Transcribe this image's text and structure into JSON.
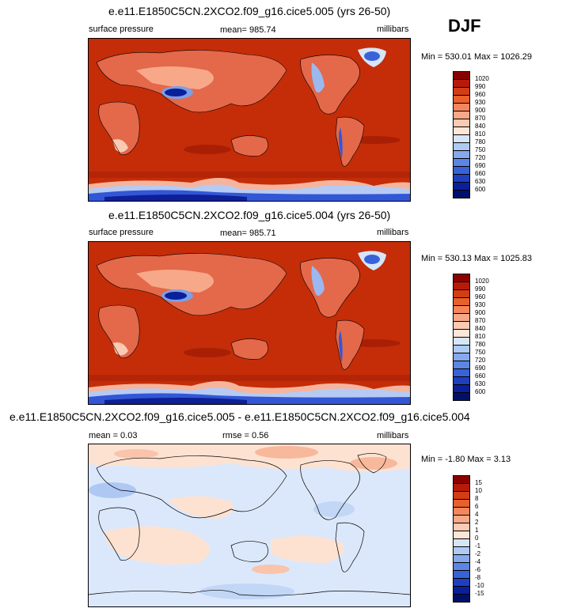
{
  "season": "DJF",
  "panels": [
    {
      "title": "e.e11.E1850C5CN.2XCO2.f09_g16.cice5.005 (yrs 26-50)",
      "left_label": "surface pressure",
      "mean_text": "mean= 985.74",
      "units": "millibars",
      "minmax": "Min = 530.01 Max = 1026.29"
    },
    {
      "title": "e.e11.E1850C5CN.2XCO2.f09_g16.cice5.004 (yrs 26-50)",
      "left_label": "surface pressure",
      "mean_text": "mean= 985.71",
      "units": "millibars",
      "minmax": "Min = 530.13 Max = 1025.83"
    },
    {
      "title": "e.e11.E1850C5CN.2XCO2.f09_g16.cice5.005 - e.e11.E1850C5CN.2XCO2.f09_g16.cice5.004",
      "mean_text": "mean =   0.03",
      "rmse_text": "rmse =   0.56",
      "units": "millibars",
      "minmax": "Min =  -1.80 Max =   3.13"
    }
  ],
  "chart_data": [
    {
      "type": "heatmap",
      "title": "e.e11.E1850C5CN.2XCO2.f09_g16.cice5.005 (yrs 26-50)",
      "variable": "surface pressure",
      "units": "millibars",
      "mean": 985.74,
      "min": 530.01,
      "max": 1026.29,
      "colorbar_levels": [
        "1020",
        "990",
        "960",
        "930",
        "900",
        "870",
        "840",
        "810",
        "780",
        "750",
        "720",
        "690",
        "660",
        "630",
        "600"
      ],
      "colorbar_colors": [
        "#8b0000",
        "#b81a0a",
        "#d43d12",
        "#e8602c",
        "#f5855a",
        "#f7a888",
        "#fbcab3",
        "#fde6d8",
        "#d6e6fa",
        "#aecbf3",
        "#85a9ec",
        "#5d86e4",
        "#3a62d8",
        "#1f3fbf",
        "#0a1f9a",
        "#00106a"
      ]
    },
    {
      "type": "heatmap",
      "title": "e.e11.E1850C5CN.2XCO2.f09_g16.cice5.004 (yrs 26-50)",
      "variable": "surface pressure",
      "units": "millibars",
      "mean": 985.71,
      "min": 530.13,
      "max": 1025.83,
      "colorbar_levels": [
        "1020",
        "990",
        "960",
        "930",
        "900",
        "870",
        "840",
        "810",
        "780",
        "750",
        "720",
        "690",
        "660",
        "630",
        "600"
      ],
      "colorbar_colors": [
        "#8b0000",
        "#b81a0a",
        "#d43d12",
        "#e8602c",
        "#f5855a",
        "#f7a888",
        "#fbcab3",
        "#fde6d8",
        "#d6e6fa",
        "#aecbf3",
        "#85a9ec",
        "#5d86e4",
        "#3a62d8",
        "#1f3fbf",
        "#0a1f9a",
        "#00106a"
      ]
    },
    {
      "type": "heatmap",
      "title": "e.e11.E1850C5CN.2XCO2.f09_g16.cice5.005 - e.e11.E1850C5CN.2XCO2.f09_g16.cice5.004",
      "units": "millibars",
      "mean": 0.03,
      "rmse": 0.56,
      "min": -1.8,
      "max": 3.13,
      "colorbar_levels": [
        "15",
        "10",
        "8",
        "6",
        "4",
        "2",
        "1",
        "0",
        "-1",
        "-2",
        "-4",
        "-6",
        "-8",
        "-10",
        "-15"
      ],
      "colorbar_colors": [
        "#8b0000",
        "#b81a0a",
        "#d43d12",
        "#e8602c",
        "#f5855a",
        "#f7a888",
        "#fbcab3",
        "#fde6d8",
        "#d6e6fa",
        "#aecbf3",
        "#85a9ec",
        "#5d86e4",
        "#3a62d8",
        "#1f3fbf",
        "#0a1f9a",
        "#00106a"
      ]
    }
  ]
}
